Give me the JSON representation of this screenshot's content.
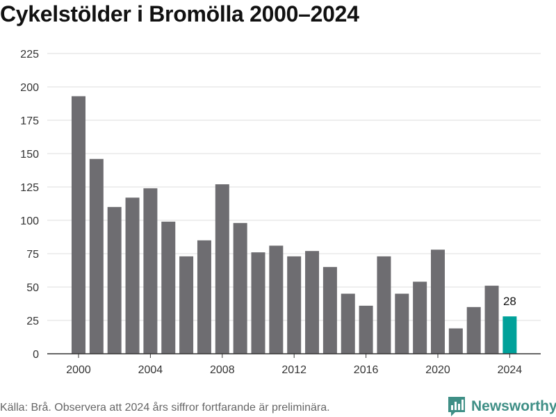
{
  "title": "Cykelstölder i Bromölla 2000–2024",
  "source": "Källa: Brå. Observera att 2024 års siffror fortfarande är preliminära.",
  "brand": {
    "name": "Newsworthy",
    "icon": "newsworthy-logo-icon"
  },
  "colors": {
    "bar": "#6e6d71",
    "highlight": "#00a19a",
    "grid": "#dddddd",
    "axis": "#333333",
    "brand": "#3f8f86"
  },
  "chart_data": {
    "type": "bar",
    "title": "Cykelstölder i Bromölla 2000–2024",
    "xlabel": "",
    "ylabel": "",
    "x": [
      2000,
      2001,
      2002,
      2003,
      2004,
      2005,
      2006,
      2007,
      2008,
      2009,
      2010,
      2011,
      2012,
      2013,
      2014,
      2015,
      2016,
      2017,
      2018,
      2019,
      2020,
      2021,
      2022,
      2023,
      2024
    ],
    "values": [
      193,
      146,
      110,
      117,
      124,
      99,
      73,
      85,
      127,
      98,
      76,
      81,
      73,
      77,
      65,
      45,
      36,
      73,
      45,
      54,
      78,
      19,
      35,
      51,
      28
    ],
    "highlight": {
      "x": 2024,
      "label": "28",
      "color": "#00a19a"
    },
    "ylim": [
      0,
      225
    ],
    "yticks": [
      0,
      25,
      50,
      75,
      100,
      125,
      150,
      175,
      200,
      225
    ],
    "xticks": [
      2000,
      2004,
      2008,
      2012,
      2016,
      2020,
      2024
    ],
    "grid": true,
    "legend": "none"
  }
}
